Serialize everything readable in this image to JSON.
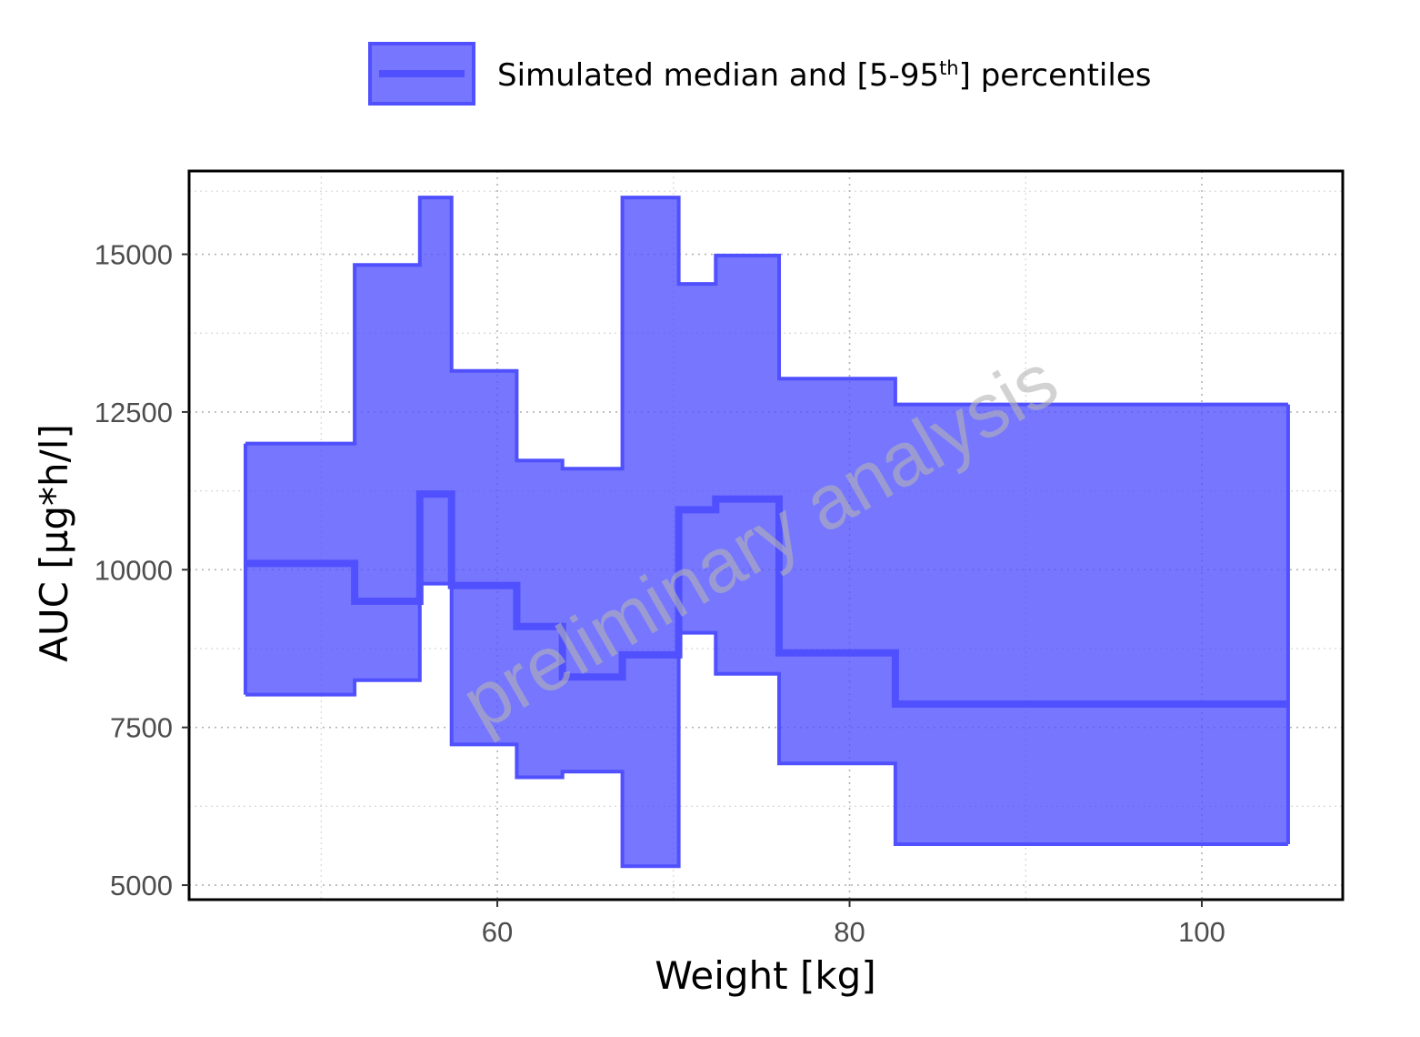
{
  "chart_data": {
    "type": "area",
    "xlabel": "Weight [kg]",
    "ylabel": "AUC [µg*h/l]",
    "xlim": [
      42.5,
      108
    ],
    "ylim": [
      4770,
      16320
    ],
    "x_ticks": [
      60,
      80,
      100
    ],
    "x_minor_ticks": [
      50,
      70,
      90
    ],
    "y_ticks": [
      5000,
      7500,
      10000,
      12500,
      15000
    ],
    "y_minor_ticks": [
      6250,
      8750,
      11250,
      13750,
      16000
    ],
    "grid": true,
    "legend_position": "top",
    "watermark": "preliminary analysis",
    "series": [
      {
        "name": "Simulated median and [5-95th] percentiles",
        "color": "#5050FF",
        "fill_color": "#5050FF",
        "fill_opacity": 0.78,
        "bins": [
          {
            "x_min": 45.7,
            "x_max": 51.9,
            "median": 10100,
            "p5": 8020,
            "p95": 12000
          },
          {
            "x_min": 51.9,
            "x_max": 55.6,
            "median": 9500,
            "p5": 8250,
            "p95": 14830
          },
          {
            "x_min": 55.6,
            "x_max": 57.4,
            "median": 11200,
            "p5": 9780,
            "p95": 15900
          },
          {
            "x_min": 57.4,
            "x_max": 61.1,
            "median": 9750,
            "p5": 7230,
            "p95": 13150
          },
          {
            "x_min": 61.1,
            "x_max": 63.7,
            "median": 9100,
            "p5": 6710,
            "p95": 11730
          },
          {
            "x_min": 63.7,
            "x_max": 67.1,
            "median": 8300,
            "p5": 6800,
            "p95": 11600
          },
          {
            "x_min": 67.1,
            "x_max": 70.3,
            "median": 8650,
            "p5": 5300,
            "p95": 15900
          },
          {
            "x_min": 70.3,
            "x_max": 72.4,
            "median": 10950,
            "p5": 9000,
            "p95": 14530
          },
          {
            "x_min": 72.4,
            "x_max": 76.0,
            "median": 11120,
            "p5": 8350,
            "p95": 14980
          },
          {
            "x_min": 76.0,
            "x_max": 82.6,
            "median": 8680,
            "p5": 6930,
            "p95": 13030
          },
          {
            "x_min": 82.6,
            "x_max": 104.9,
            "median": 7870,
            "p5": 5650,
            "p95": 12620
          }
        ]
      }
    ]
  },
  "legend": {
    "label_main": "Simulated median and [5-95",
    "label_sup": "th",
    "label_end": "] percentiles"
  }
}
